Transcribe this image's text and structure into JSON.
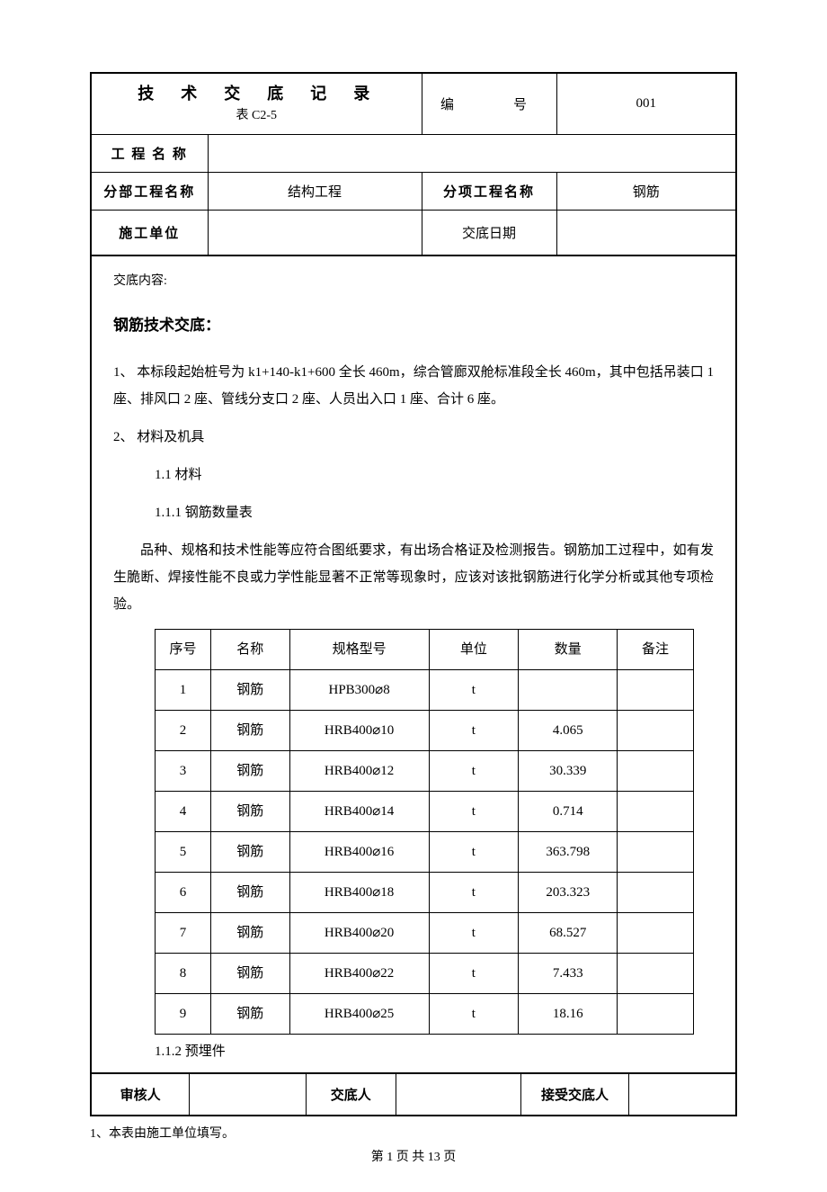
{
  "header": {
    "title": "技　术　交　底　记　录",
    "subtitle": "表 C2-5",
    "code_label": "编　　号",
    "code_value": "001",
    "proj_name_label": "工 程 名 称",
    "proj_name_value": "",
    "subdiv_label": "分部工程名称",
    "subdiv_value": "结构工程",
    "subitem_label": "分项工程名称",
    "subitem_value": "钢筋",
    "contractor_label": "施工单位",
    "contractor_value": "",
    "date_label": "交底日期",
    "date_value": ""
  },
  "content": {
    "label": "交底内容:",
    "section_title": "钢筋技术交底：",
    "para1": "1、 本标段起始桩号为 k1+140-k1+600 全长 460m，综合管廊双舱标准段全长 460m，其中包括吊装口 1 座、排风口 2 座、管线分支口 2 座、人员出入口 1 座、合计 6 座。",
    "para2": "2、 材料及机具",
    "para3": "1.1 材料",
    "para4": "1.1.1 钢筋数量表",
    "para5": "品种、规格和技术性能等应符合图纸要求，有出场合格证及检测报告。钢筋加工过程中，如有发生脆断、焊接性能不良或力学性能显著不正常等现象时，应该对该批钢筋进行化学分析或其他专项检验。",
    "para6": "1.1.2 预埋件"
  },
  "quantity_table": {
    "columns": [
      "序号",
      "名称",
      "规格型号",
      "单位",
      "数量",
      "备注"
    ],
    "rows": [
      [
        "1",
        "钢筋",
        "HPB300⌀8",
        "t",
        "",
        ""
      ],
      [
        "2",
        "钢筋",
        "HRB400⌀10",
        "t",
        "4.065",
        ""
      ],
      [
        "3",
        "钢筋",
        "HRB400⌀12",
        "t",
        "30.339",
        ""
      ],
      [
        "4",
        "钢筋",
        "HRB400⌀14",
        "t",
        "0.714",
        ""
      ],
      [
        "5",
        "钢筋",
        "HRB400⌀16",
        "t",
        "363.798",
        ""
      ],
      [
        "6",
        "钢筋",
        "HRB400⌀18",
        "t",
        "203.323",
        ""
      ],
      [
        "7",
        "钢筋",
        "HRB400⌀20",
        "t",
        "68.527",
        ""
      ],
      [
        "8",
        "钢筋",
        "HRB400⌀22",
        "t",
        "7.433",
        ""
      ],
      [
        "9",
        "钢筋",
        "HRB400⌀25",
        "t",
        "18.16",
        ""
      ]
    ],
    "col_classes": [
      "col-seq",
      "col-name",
      "col-spec",
      "col-unit",
      "col-qty",
      "col-note"
    ]
  },
  "signoff": {
    "reviewer_label": "审核人",
    "briefer_label": "交底人",
    "receiver_label": "接受交底人"
  },
  "footnote": "1、本表由施工单位填写。",
  "pagenum": "第 1 页 共 13 页",
  "colors": {
    "text": "#000000",
    "bg": "#ffffff",
    "border": "#000000"
  }
}
